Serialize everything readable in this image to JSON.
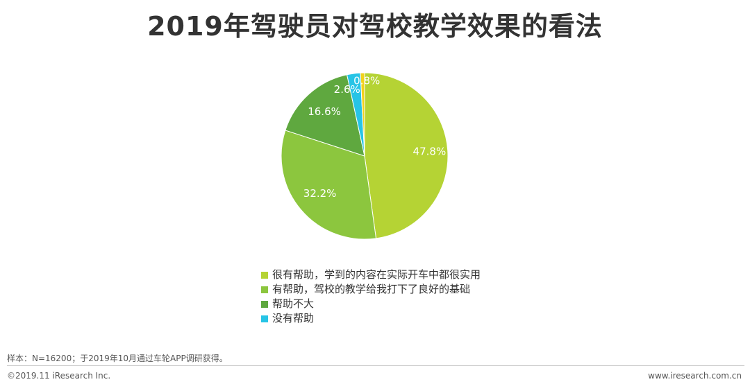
{
  "chart_data": {
    "type": "pie",
    "title": "2019年驾驶员对驾校教学效果的看法",
    "categories": [
      "很有帮助，学到的内容在实际开车中都很实用",
      "有帮助，驾校的教学给我打下了良好的基础",
      "帮助不大",
      "没有帮助",
      ""
    ],
    "values": [
      47.8,
      32.2,
      16.6,
      2.6,
      0.8
    ],
    "labels": [
      "47.8%",
      "32.2%",
      "16.6%",
      "2.6%",
      "0.8%"
    ],
    "colors": [
      "#b5d334",
      "#8cc63e",
      "#5fa83f",
      "#27c4e6",
      "#f2d21b"
    ],
    "legend_position": "bottom"
  },
  "legend": [
    {
      "label": "很有帮助，学到的内容在实际开车中都很实用",
      "color": "#b5d334"
    },
    {
      "label": "有帮助，驾校的教学给我打下了良好的基础",
      "color": "#8cc63e"
    },
    {
      "label": "帮助不大",
      "color": "#5fa83f"
    },
    {
      "label": "没有帮助",
      "color": "#27c4e6"
    }
  ],
  "footer": {
    "source": "样本：N=16200；于2019年10月通过车轮APP调研获得。",
    "copyright": "©2019.11 iResearch Inc.",
    "website": "www.iresearch.com.cn"
  }
}
